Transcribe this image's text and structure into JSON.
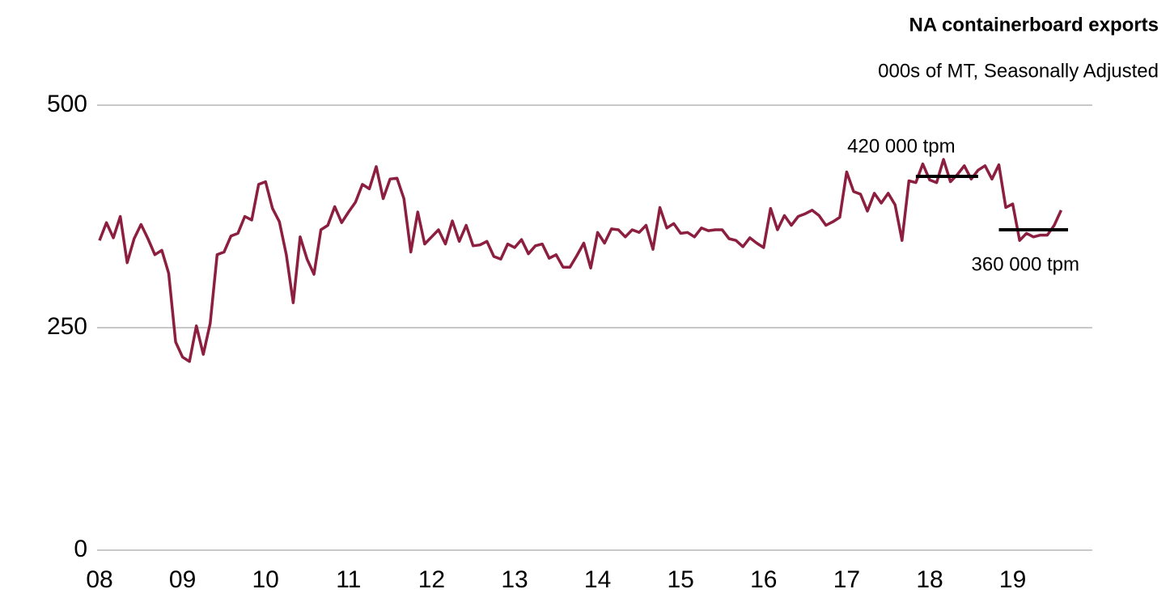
{
  "chart_data": {
    "type": "line",
    "title": "NA containerboard exports",
    "subtitle": "000s of MT, Seasonally Adjusted",
    "categories": [
      "08",
      null,
      null,
      null,
      null,
      null,
      null,
      null,
      null,
      null,
      null,
      null,
      "09",
      null,
      null,
      null,
      null,
      null,
      null,
      null,
      null,
      null,
      null,
      null,
      "10",
      null,
      null,
      null,
      null,
      null,
      null,
      null,
      null,
      null,
      null,
      null,
      "11",
      null,
      null,
      null,
      null,
      null,
      null,
      null,
      null,
      null,
      null,
      null,
      "12",
      null,
      null,
      null,
      null,
      null,
      null,
      null,
      null,
      null,
      null,
      null,
      "13",
      null,
      null,
      null,
      null,
      null,
      null,
      null,
      null,
      null,
      null,
      null,
      "14",
      null,
      null,
      null,
      null,
      null,
      null,
      null,
      null,
      null,
      null,
      null,
      "15",
      null,
      null,
      null,
      null,
      null,
      null,
      null,
      null,
      null,
      null,
      null,
      "16",
      null,
      null,
      null,
      null,
      null,
      null,
      null,
      null,
      null,
      null,
      null,
      "17",
      null,
      null,
      null,
      null,
      null,
      null,
      null,
      null,
      null,
      null,
      null,
      "18",
      null,
      null,
      null,
      null,
      null,
      null,
      null,
      null,
      null,
      null,
      null,
      "19",
      null,
      null,
      null,
      null,
      null,
      null,
      null
    ],
    "series": [
      {
        "name": "NA containerboard exports",
        "color": "#8c1f40",
        "values": [
          348,
          368,
          351,
          375,
          323,
          350,
          366,
          350,
          332,
          337,
          311,
          234,
          217,
          212,
          252,
          220,
          255,
          332,
          335,
          353,
          356,
          375,
          371,
          411,
          414,
          384,
          369,
          332,
          278,
          352,
          327,
          310,
          360,
          365,
          386,
          368,
          380,
          391,
          411,
          406,
          431,
          395,
          417,
          418,
          395,
          335,
          380,
          344,
          352,
          360,
          344,
          370,
          347,
          365,
          342,
          343,
          347,
          330,
          327,
          344,
          340,
          349,
          333,
          342,
          344,
          328,
          332,
          318,
          318,
          331,
          345,
          317,
          357,
          345,
          361,
          360,
          352,
          360,
          357,
          365,
          338,
          385,
          362,
          367,
          356,
          357,
          352,
          362,
          359,
          360,
          360,
          350,
          348,
          341,
          351,
          345,
          340,
          384,
          360,
          376,
          365,
          375,
          378,
          382,
          376,
          365,
          369,
          374,
          425,
          403,
          400,
          381,
          401,
          390,
          401,
          388,
          348,
          415,
          413,
          434,
          416,
          413,
          439,
          414,
          422,
          432,
          417,
          427,
          432,
          417,
          433,
          385,
          389,
          348,
          356,
          352,
          354,
          354,
          365,
          382
        ]
      }
    ],
    "ylim": [
      0,
      500
    ],
    "yticks": [
      0,
      250,
      500
    ],
    "grid": true,
    "annotations": [
      {
        "text": "420 000 tpm",
        "value": 420,
        "start": 118,
        "end": 127
      },
      {
        "text": "360 000 tpm",
        "value": 360,
        "start": 130,
        "end": 140
      }
    ]
  }
}
